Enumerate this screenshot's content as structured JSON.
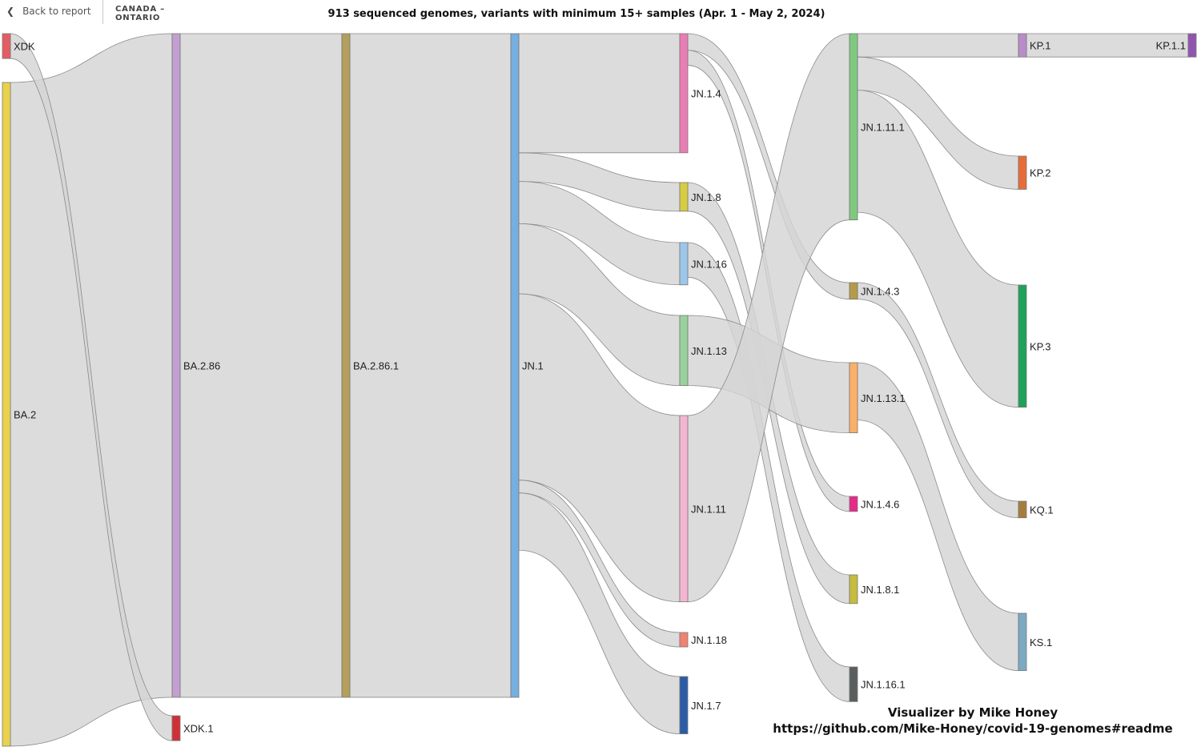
{
  "header": {
    "back_label": "Back to report",
    "back_icon": "chevron-left-icon",
    "region": "CANADA – ONTARIO"
  },
  "title": "913 sequenced genomes, variants with minimum 15+ samples (Apr. 1 - May 2, 2024)",
  "credit": {
    "line1": "Visualizer by Mike Honey",
    "line2": "https://github.com/Mike-Honey/covid-19-genomes#readme"
  },
  "chart_data": {
    "type": "sankey",
    "unit": "sequenced genomes",
    "total": 913,
    "link_color": "#d4d4d4",
    "nodes": [
      {
        "id": "XDK",
        "label": "XDK",
        "color": "#e35d63"
      },
      {
        "id": "BA.2",
        "label": "BA.2",
        "color": "#e8d24e"
      },
      {
        "id": "BA.2.86",
        "label": "BA.2.86",
        "color": "#c39fd1"
      },
      {
        "id": "XDK.1",
        "label": "XDK.1",
        "color": "#d12f37"
      },
      {
        "id": "BA.2.86.1",
        "label": "BA.2.86.1",
        "color": "#b49f5c"
      },
      {
        "id": "JN.1",
        "label": "JN.1",
        "color": "#76aee0"
      },
      {
        "id": "JN.1.4",
        "label": "JN.1.4",
        "color": "#ea7db3"
      },
      {
        "id": "JN.1.8",
        "label": "JN.1.8",
        "color": "#d7cc42"
      },
      {
        "id": "JN.1.16",
        "label": "JN.1.16",
        "color": "#9dc7ea"
      },
      {
        "id": "JN.1.13",
        "label": "JN.1.13",
        "color": "#99d19a"
      },
      {
        "id": "JN.1.11",
        "label": "JN.1.11",
        "color": "#f3b5d2"
      },
      {
        "id": "JN.1.18",
        "label": "JN.1.18",
        "color": "#f08272"
      },
      {
        "id": "JN.1.7",
        "label": "JN.1.7",
        "color": "#2d5ca6"
      },
      {
        "id": "JN.1.11.1",
        "label": "JN.1.11.1",
        "color": "#7fc97f"
      },
      {
        "id": "JN.1.4.3",
        "label": "JN.1.4.3",
        "color": "#b59a4a"
      },
      {
        "id": "JN.1.13.1",
        "label": "JN.1.13.1",
        "color": "#fbb068"
      },
      {
        "id": "JN.1.4.6",
        "label": "JN.1.4.6",
        "color": "#e7298a"
      },
      {
        "id": "JN.1.8.1",
        "label": "JN.1.8.1",
        "color": "#c6bc3e"
      },
      {
        "id": "JN.1.16.1",
        "label": "JN.1.16.1",
        "color": "#5a5e5e"
      },
      {
        "id": "KP.1",
        "label": "KP.1",
        "color": "#b98cc9"
      },
      {
        "id": "KP.2",
        "label": "KP.2",
        "color": "#e86c39"
      },
      {
        "id": "KP.3",
        "label": "KP.3",
        "color": "#1ea25a"
      },
      {
        "id": "KQ.1",
        "label": "KQ.1",
        "color": "#a67c3d"
      },
      {
        "id": "KS.1",
        "label": "KS.1",
        "color": "#7da9c2"
      },
      {
        "id": "KP.1.1",
        "label": "KP.1.1",
        "color": "#8f55b0"
      }
    ],
    "links": [
      {
        "source": "BA.2",
        "target": "BA.2.86",
        "value": 880
      },
      {
        "source": "XDK",
        "target": "XDK.1",
        "value": 33
      },
      {
        "source": "BA.2.86",
        "target": "BA.2.86.1",
        "value": 880
      },
      {
        "source": "BA.2.86.1",
        "target": "JN.1",
        "value": 880
      },
      {
        "source": "JN.1",
        "target": "JN.1.4",
        "value": 158
      },
      {
        "source": "JN.1",
        "target": "JN.1.8",
        "value": 38
      },
      {
        "source": "JN.1",
        "target": "JN.1.16",
        "value": 56
      },
      {
        "source": "JN.1",
        "target": "JN.1.13",
        "value": 93
      },
      {
        "source": "JN.1",
        "target": "JN.1.11",
        "value": 247
      },
      {
        "source": "JN.1",
        "target": "JN.1.18",
        "value": 17
      },
      {
        "source": "JN.1",
        "target": "JN.1.7",
        "value": 76
      },
      {
        "source": "JN.1.4",
        "target": "JN.1.4.3",
        "value": 22
      },
      {
        "source": "JN.1.4",
        "target": "JN.1.4.6",
        "value": 20
      },
      {
        "source": "JN.1.8",
        "target": "JN.1.8.1",
        "value": 38
      },
      {
        "source": "JN.1.16",
        "target": "JN.1.16.1",
        "value": 46
      },
      {
        "source": "JN.1.13",
        "target": "JN.1.13.1",
        "value": 93
      },
      {
        "source": "JN.1.11",
        "target": "JN.1.11.1",
        "value": 247
      },
      {
        "source": "JN.1.11.1",
        "target": "KP.1",
        "value": 31
      },
      {
        "source": "JN.1.11.1",
        "target": "KP.2",
        "value": 44
      },
      {
        "source": "JN.1.11.1",
        "target": "KP.3",
        "value": 162
      },
      {
        "source": "JN.1.4.3",
        "target": "KQ.1",
        "value": 22
      },
      {
        "source": "JN.1.13.1",
        "target": "KS.1",
        "value": 76
      },
      {
        "source": "KP.1",
        "target": "KP.1.1",
        "value": 31
      }
    ]
  }
}
